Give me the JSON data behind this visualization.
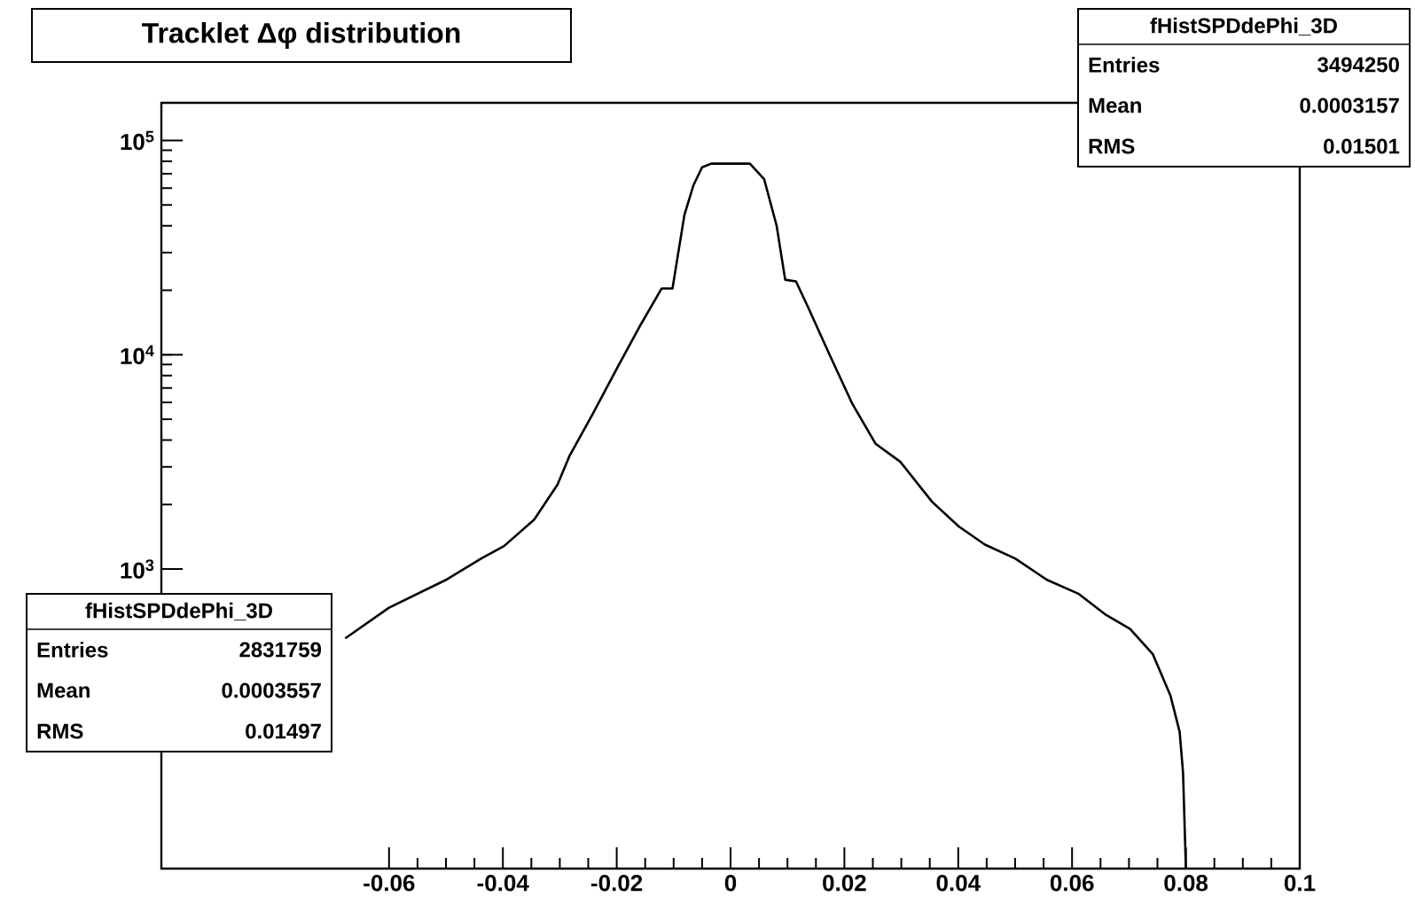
{
  "chart_data": {
    "type": "line",
    "title": "Tracklet Δφ  distribution",
    "log": true,
    "xlim": [
      -0.1,
      0.1
    ],
    "ylim": [
      40,
      150000
    ],
    "xticks": [
      -0.06,
      -0.04,
      -0.02,
      0,
      0.02,
      0.04,
      0.06,
      0.08,
      0.1
    ],
    "yticks": [
      {
        "value": 1000,
        "label": "10$^{3}$"
      },
      {
        "value": 10000,
        "label": "10$^{4}$"
      },
      {
        "value": 100000,
        "label": "10$^{5}$"
      }
    ],
    "x": [
      -0.0677,
      -0.06,
      -0.05,
      -0.0438,
      -0.0398,
      -0.0345,
      -0.0304,
      -0.0283,
      -0.0242,
      -0.0199,
      -0.0158,
      -0.0121,
      -0.0102,
      -0.0096,
      -0.0081,
      -0.0065,
      -0.005,
      -0.0034,
      0,
      0.0034,
      0.0059,
      0.0081,
      0.0096,
      0.0115,
      0.0137,
      0.0174,
      0.0214,
      0.0255,
      0.0298,
      0.0354,
      0.0401,
      0.0447,
      0.05,
      0.0556,
      0.0612,
      0.0658,
      0.0702,
      0.0742,
      0.0773,
      0.0789,
      0.0795,
      0.08
    ],
    "series": [
      {
        "color": "#000000",
        "values": [
          475,
          660,
          890,
          1120,
          1280,
          1700,
          2480,
          3370,
          5300,
          8700,
          13800,
          20400,
          20400,
          25600,
          45000,
          62000,
          75000,
          78000,
          78000,
          78000,
          66000,
          40000,
          22400,
          22000,
          16500,
          10000,
          5900,
          3840,
          3170,
          2060,
          1580,
          1300,
          1120,
          890,
          765,
          615,
          525,
          400,
          256,
          174,
          112,
          40
        ]
      }
    ],
    "annotations": [
      "fHistSPDdePhi_3D",
      "Entries",
      "3494250",
      "Mean",
      "0.0003157",
      "RMS",
      "0.01501",
      "fHistSPDdePhi_3D",
      "Entries",
      "2831759",
      "Mean",
      "0.0003557",
      "RMS",
      "0.01497"
    ]
  }
}
